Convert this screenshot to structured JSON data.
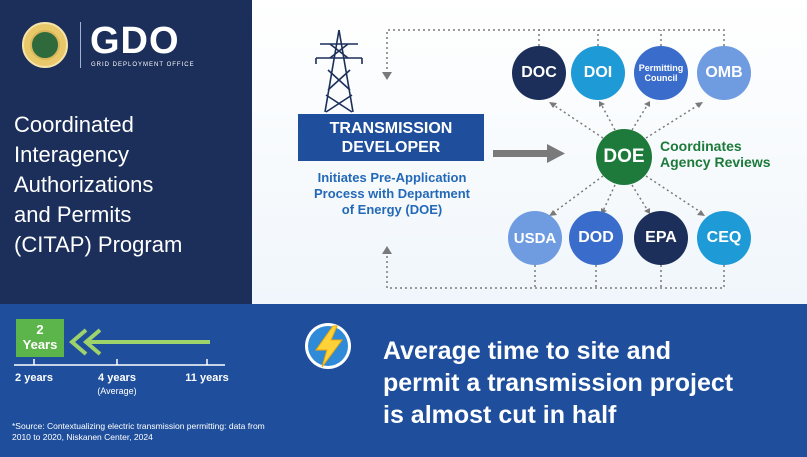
{
  "branding": {
    "logo_text": "GDO",
    "logo_subtitle": "GRID DEPLOYMENT OFFICE",
    "seal_icon": "doe-seal-icon"
  },
  "program_title": "Coordinated\nInteragency\nAuthorizations\nand Permits\n(CITAP) Program",
  "diagram": {
    "developer_box": "TRANSMISSION\nDEVELOPER",
    "developer_description": "Initiates Pre-Application\nProcess with Department\nof Energy (DOE)",
    "center": "DOE",
    "center_caption": "Coordinates\nAgency Reviews",
    "top_agencies": [
      "DOC",
      "DOI",
      "Permitting\nCouncil",
      "OMB"
    ],
    "bottom_agencies": [
      "USDA",
      "DOD",
      "EPA",
      "CEQ"
    ],
    "icons": [
      "transmission-tower-icon",
      "right-arrow-icon"
    ]
  },
  "timeline": {
    "highlight": "2\nYears",
    "labels": [
      "2 years",
      "4 years",
      "11 years"
    ],
    "average_note": "(Average)"
  },
  "source_note": "*Source: Contextualizing electric transmission permitting: data from 2010 to 2020, Niskanen Center, 2024",
  "headline": "Average time to site and\npermit a transmission project\nis almost cut in half",
  "colors": {
    "navy": "#1b2f5a",
    "blue": "#1f4f9c",
    "green": "#1d7a3a",
    "light_green": "#5cb54a",
    "cyan": "#1e9ad6"
  }
}
